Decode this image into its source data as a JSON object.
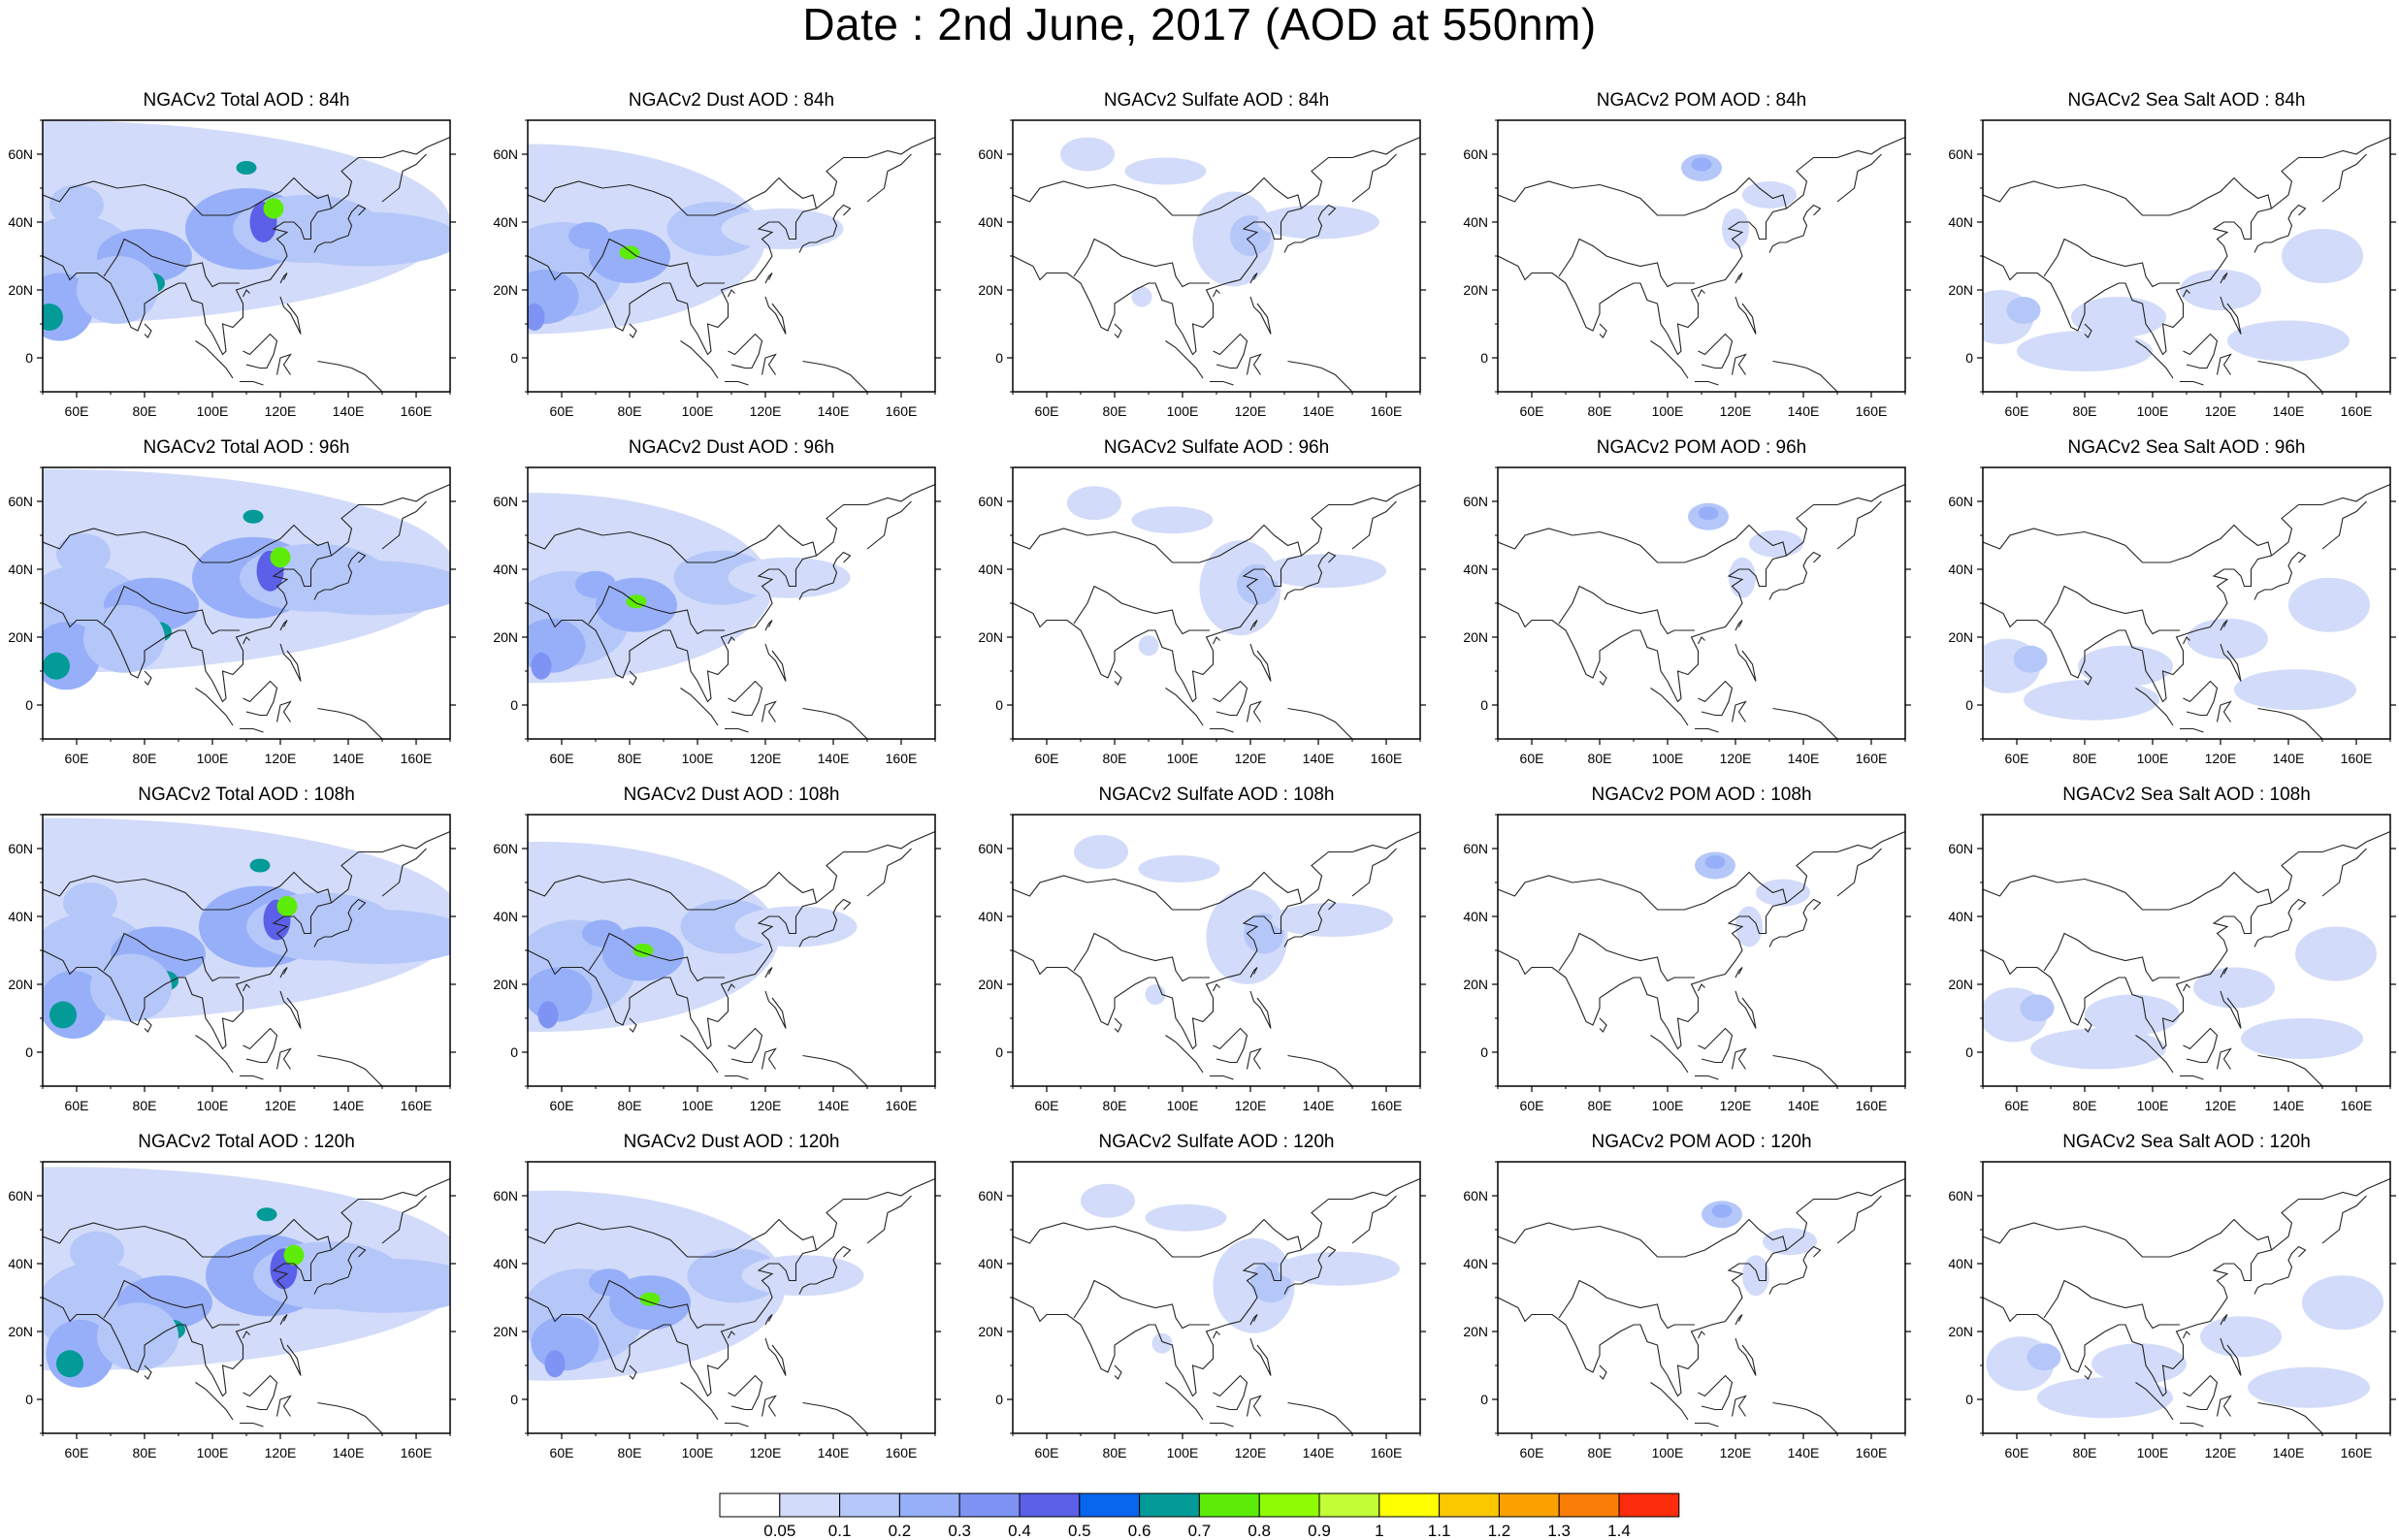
{
  "title": "Date : 2nd June, 2017 (AOD at 550nm)",
  "panels": [
    [
      "NGACv2 Total AOD : 84h",
      "NGACv2 Dust AOD : 84h",
      "NGACv2 Sulfate AOD : 84h",
      "NGACv2 POM AOD : 84h",
      "NGACv2 Sea Salt AOD : 84h"
    ],
    [
      "NGACv2 Total AOD : 96h",
      "NGACv2 Dust AOD : 96h",
      "NGACv2 Sulfate AOD : 96h",
      "NGACv2 POM AOD : 96h",
      "NGACv2 Sea Salt AOD : 96h"
    ],
    [
      "NGACv2 Total AOD : 108h",
      "NGACv2 Dust AOD : 108h",
      "NGACv2 Sulfate AOD : 108h",
      "NGACv2 POM AOD : 108h",
      "NGACv2 Sea Salt AOD : 108h"
    ],
    [
      "NGACv2 Total AOD : 120h",
      "NGACv2 Dust AOD : 120h",
      "NGACv2 Sulfate AOD : 120h",
      "NGACv2 POM AOD : 120h",
      "NGACv2 Sea Salt  AOD : 120h"
    ]
  ],
  "map": {
    "lat_labels": [
      "60N",
      "40N",
      "20N",
      "0"
    ],
    "lon_labels": [
      "60E",
      "80E",
      "100E",
      "120E",
      "140E",
      "160E"
    ]
  },
  "colorbar": {
    "colors": [
      "#ffffff",
      "#d2dbf9",
      "#b5c7f9",
      "#96aff8",
      "#7e93f3",
      "#5c5fe8",
      "#0865ee",
      "#039a97",
      "#5cec08",
      "#8ffb04",
      "#c3fe37",
      "#ffff00",
      "#fbc800",
      "#faa100",
      "#f97d06",
      "#fb2d0c"
    ],
    "labels": [
      "0.05",
      "0.1",
      "0.2",
      "0.3",
      "0.4",
      "0.5",
      "0.6",
      "0.7",
      "0.8",
      "0.9",
      "1",
      "1.1",
      "1.2",
      "1.3",
      "1.4"
    ]
  }
}
